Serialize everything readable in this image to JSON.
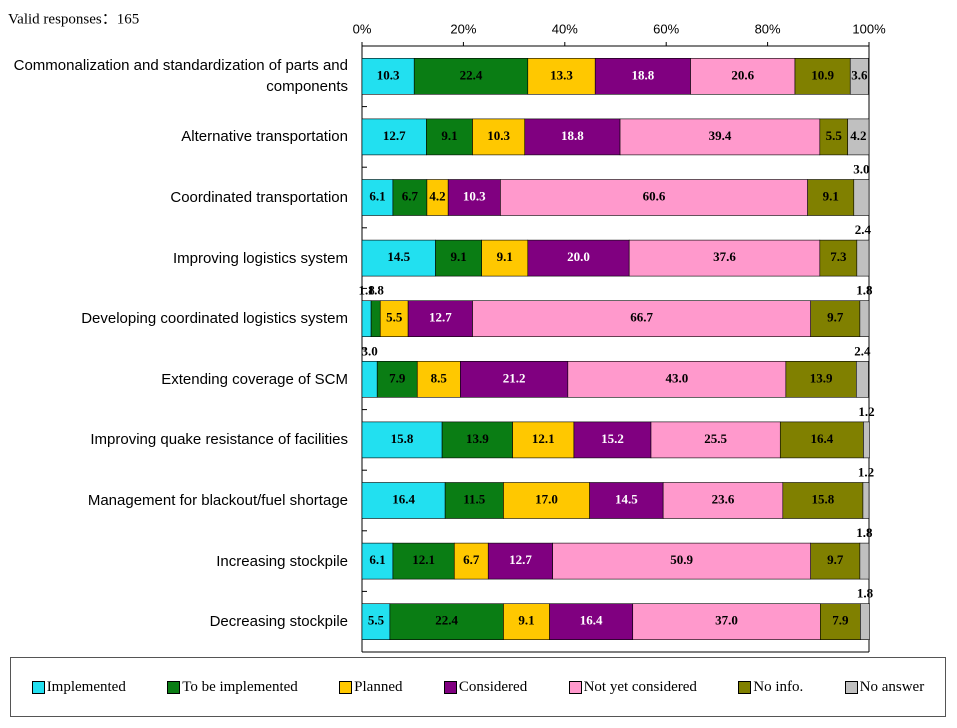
{
  "chart_data": {
    "type": "stacked-bar-horizontal",
    "note": "Valid responses：165",
    "categories": [
      "Commonalization and standardization of parts and components",
      "Alternative transportation",
      "Coordinated transportation",
      "Improving logistics system",
      "Developing coordinated logistics system",
      "Extending coverage of SCM",
      "Improving quake resistance of facilities",
      "Management for blackout/fuel shortage",
      "Increasing stockpile",
      "Decreasing stockpile"
    ],
    "xlim": [
      0,
      100
    ],
    "xticks": [
      {
        "value": 0,
        "label": "0%"
      },
      {
        "value": 20,
        "label": "20%"
      },
      {
        "value": 40,
        "label": "40%"
      },
      {
        "value": 60,
        "label": "60%"
      },
      {
        "value": 80,
        "label": "80%"
      },
      {
        "value": 100,
        "label": "100%"
      }
    ],
    "series": [
      {
        "name": "Implemented",
        "color": "#22e0f0",
        "values": [
          10.3,
          12.7,
          6.1,
          14.5,
          1.8,
          3.0,
          15.8,
          16.4,
          6.1,
          5.5
        ],
        "value_labels": [
          "10.3",
          "12.7",
          "6.1",
          "14.5",
          "1.8",
          "3.0",
          "15.8",
          "16.4",
          "6.1",
          "5.5"
        ]
      },
      {
        "name": "To be implemented",
        "color": "#0a7d14",
        "values": [
          22.4,
          9.1,
          6.7,
          9.1,
          1.8,
          7.9,
          13.9,
          11.5,
          12.1,
          22.4
        ],
        "value_labels": [
          "22.4",
          "9.1",
          "6.7",
          "9.1",
          "1.8",
          "7.9",
          "13.9",
          "11.5",
          "12.1",
          "22.4"
        ]
      },
      {
        "name": "Planned",
        "color": "#ffc800",
        "values": [
          13.3,
          10.3,
          4.2,
          9.1,
          5.5,
          8.5,
          12.1,
          17.0,
          6.7,
          9.1
        ],
        "value_labels": [
          "13.3",
          "10.3",
          "4.2",
          "9.1",
          "5.5",
          "8.5",
          "12.1",
          "17.0",
          "6.7",
          "9.1"
        ]
      },
      {
        "name": "Considered",
        "color": "#800080",
        "values": [
          18.8,
          18.8,
          10.3,
          20.0,
          12.7,
          21.2,
          15.2,
          14.5,
          12.7,
          16.4
        ],
        "value_labels": [
          "18.8",
          "18.8",
          "10.3",
          "20.0",
          "12.7",
          "21.2",
          "15.2",
          "14.5",
          "12.7",
          "16.4"
        ]
      },
      {
        "name": "Not yet considered",
        "color": "#ff99cc",
        "values": [
          20.6,
          39.4,
          60.6,
          37.6,
          66.7,
          43.0,
          25.5,
          23.6,
          50.9,
          37.0
        ],
        "value_labels": [
          "20.6",
          "39.4",
          "60.6",
          "37.6",
          "66.7",
          "43.0",
          "25.5",
          "23.6",
          "50.9",
          "37.0"
        ]
      },
      {
        "name": "No info.",
        "color": "#808000",
        "values": [
          10.9,
          5.5,
          9.1,
          7.3,
          9.7,
          13.9,
          16.4,
          15.8,
          9.7,
          7.9
        ],
        "value_labels": [
          "10.9",
          "5.5",
          "9.1",
          "7.3",
          "9.7",
          "13.9",
          "16.4",
          "15.8",
          "9.7",
          "7.9"
        ]
      },
      {
        "name": "No answer",
        "color": "#c0c0c0",
        "values": [
          3.6,
          4.2,
          3.0,
          2.4,
          1.8,
          2.4,
          1.2,
          1.2,
          1.8,
          1.8
        ],
        "value_labels": [
          "3.6",
          "4.2",
          "3.0",
          "2.4",
          "1.8",
          "2.4",
          "1.2",
          "1.2",
          "1.8",
          "1.8"
        ]
      }
    ]
  }
}
